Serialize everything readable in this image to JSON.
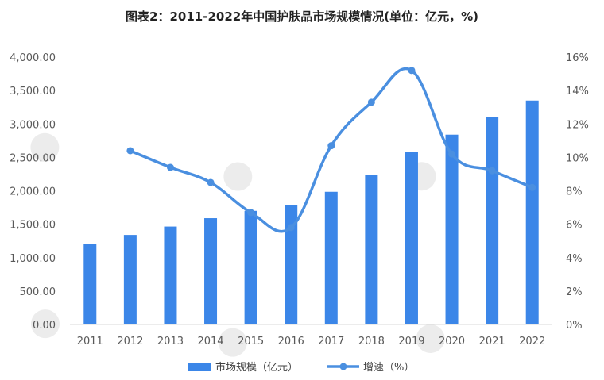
{
  "chart_data": {
    "type": "bar+line",
    "title": "图表2：2011-2022年中国护肤品市场规模情况(单位：亿元，%)",
    "categories": [
      "2011",
      "2012",
      "2013",
      "2014",
      "2015",
      "2016",
      "2017",
      "2018",
      "2019",
      "2020",
      "2021",
      "2022"
    ],
    "bar_series": {
      "name": "市场规模（亿元）",
      "values": [
        1210,
        1340,
        1465,
        1590,
        1700,
        1790,
        1985,
        2235,
        2580,
        2840,
        3100,
        3350
      ]
    },
    "line_series": {
      "name": "增速（%）",
      "values": [
        null,
        10.4,
        9.4,
        8.5,
        6.7,
        5.8,
        10.7,
        13.3,
        15.2,
        10.2,
        9.2,
        8.2
      ]
    },
    "y_left": {
      "min": 0,
      "max": 4000,
      "step": 500,
      "tick_labels": [
        "0.00",
        "500.00",
        "1,000.00",
        "1,500.00",
        "2,000.00",
        "2,500.00",
        "3,000.00",
        "3,500.00",
        "4,000.00"
      ]
    },
    "y_right": {
      "min": 0,
      "max": 16,
      "step": 2,
      "tick_labels": [
        "0%",
        "2%",
        "4%",
        "6%",
        "8%",
        "10%",
        "12%",
        "14%",
        "16%"
      ]
    },
    "grid": false,
    "legend_position": "bottom",
    "colors": {
      "bar": "#3b86e8",
      "line": "#4a8fe0",
      "axis": "#d9d9d9"
    },
    "watermark_icon": "qianzhan-logo-watermark"
  }
}
